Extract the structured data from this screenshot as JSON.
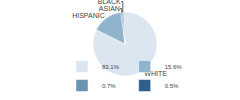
{
  "chart_data": {
    "type": "pie",
    "categories": [
      "WHITE",
      "HISPANIC",
      "ASIAN",
      "BLACK"
    ],
    "values": [
      83.1,
      15.6,
      0.7,
      0.5
    ],
    "value_labels": [
      "83.1%",
      "15.6%",
      "0.7%",
      "0.5%"
    ],
    "colors": [
      "#dce6f1",
      "#8fb4cc",
      "#6a93b0",
      "#2e5f8a"
    ],
    "legend": "bottom"
  }
}
